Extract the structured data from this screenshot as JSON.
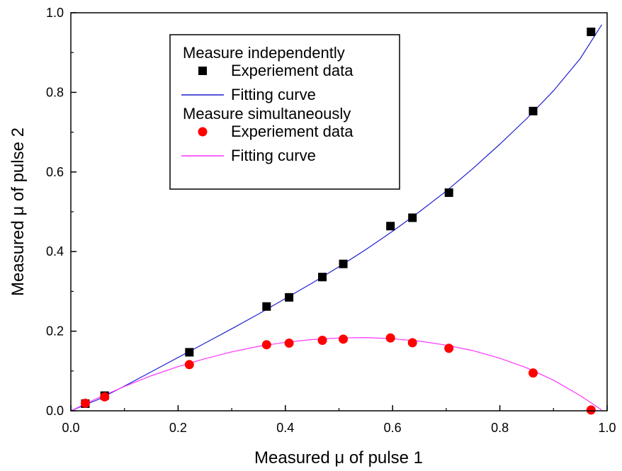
{
  "chart_data": {
    "type": "scatter",
    "xlabel": "Measured μ of pulse 1",
    "ylabel": "Measured μ of pulse 2",
    "xlim": [
      0.0,
      1.0
    ],
    "ylim": [
      0.0,
      1.0
    ],
    "xticks": [
      "0.0",
      "0.2",
      "0.4",
      "0.6",
      "0.8",
      "1.0"
    ],
    "yticks": [
      "0.0",
      "0.2",
      "0.4",
      "0.6",
      "0.8",
      "1.0"
    ],
    "grid": false,
    "legend_position": "top-left",
    "groups": [
      {
        "title": "Measure independently",
        "series": [
          {
            "name": "Experiement data",
            "marker": "square",
            "color": "#000000",
            "x": [
              0.027,
              0.063,
              0.221,
              0.365,
              0.407,
              0.469,
              0.508,
              0.596,
              0.637,
              0.705,
              0.862,
              0.97
            ],
            "y": [
              0.018,
              0.038,
              0.147,
              0.262,
              0.285,
              0.336,
              0.369,
              0.464,
              0.485,
              0.548,
              0.753,
              0.952
            ]
          },
          {
            "name": "Fitting curve",
            "marker": "line",
            "color": "#1f1fd0",
            "x": [
              0.0,
              0.05,
              0.1,
              0.15,
              0.2,
              0.25,
              0.3,
              0.35,
              0.4,
              0.45,
              0.5,
              0.55,
              0.6,
              0.65,
              0.7,
              0.75,
              0.8,
              0.85,
              0.9,
              0.95,
              0.99
            ],
            "y": [
              0.0,
              0.028,
              0.062,
              0.098,
              0.134,
              0.17,
              0.206,
              0.243,
              0.282,
              0.321,
              0.362,
              0.405,
              0.451,
              0.5,
              0.552,
              0.609,
              0.67,
              0.734,
              0.804,
              0.885,
              0.97
            ]
          }
        ]
      },
      {
        "title": "Measure simultaneously",
        "series": [
          {
            "name": "Experiement data",
            "marker": "circle",
            "color": "#ff0000",
            "x": [
              0.027,
              0.063,
              0.221,
              0.365,
              0.407,
              0.469,
              0.508,
              0.596,
              0.637,
              0.705,
              0.862,
              0.97
            ],
            "y": [
              0.019,
              0.035,
              0.116,
              0.166,
              0.17,
              0.177,
              0.18,
              0.183,
              0.171,
              0.157,
              0.095,
              0.002
            ]
          },
          {
            "name": "Fitting curve",
            "marker": "line",
            "color": "#ff33ff",
            "x": [
              0.0,
              0.05,
              0.1,
              0.15,
              0.2,
              0.25,
              0.3,
              0.35,
              0.4,
              0.45,
              0.5,
              0.55,
              0.6,
              0.65,
              0.7,
              0.75,
              0.8,
              0.85,
              0.9,
              0.95,
              0.99
            ],
            "y": [
              0.0,
              0.032,
              0.061,
              0.088,
              0.111,
              0.131,
              0.148,
              0.162,
              0.172,
              0.179,
              0.183,
              0.184,
              0.181,
              0.175,
              0.165,
              0.151,
              0.132,
              0.108,
              0.077,
              0.038,
              0.002
            ]
          }
        ]
      }
    ]
  }
}
